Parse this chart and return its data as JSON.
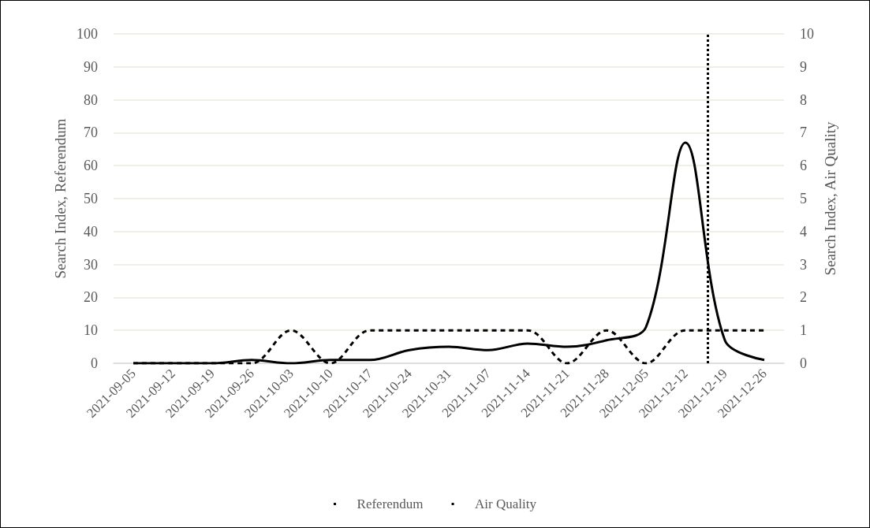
{
  "chart_data": {
    "type": "line",
    "x": [
      "2021-09-05",
      "2021-09-12",
      "2021-09-19",
      "2021-09-26",
      "2021-10-03",
      "2021-10-10",
      "2021-10-17",
      "2021-10-24",
      "2021-10-31",
      "2021-11-07",
      "2021-11-14",
      "2021-11-21",
      "2021-11-28",
      "2021-12-05",
      "2021-12-12",
      "2021-12-19",
      "2021-12-26"
    ],
    "xlim": [
      "2021-09-01T12:00",
      "2021-12-29T12:00"
    ],
    "xticks": [
      "2021-09-05",
      "2021-09-12",
      "2021-09-19",
      "2021-09-26",
      "2021-10-03",
      "2021-10-10",
      "2021-10-17",
      "2021-10-24",
      "2021-10-31",
      "2021-11-07",
      "2021-11-14",
      "2021-11-21",
      "2021-11-28",
      "2021-12-05",
      "2021-12-12",
      "2021-12-19",
      "2021-12-26"
    ],
    "ylabel": "Search Index, Referendum",
    "y2label": "Search Index, Air Quality",
    "ylim": [
      0,
      100
    ],
    "yticks": [
      0,
      10,
      20,
      30,
      40,
      50,
      60,
      70,
      80,
      90,
      100
    ],
    "y2lim": [
      0,
      10
    ],
    "y2ticks": [
      0,
      1,
      2,
      3,
      4,
      5,
      6,
      7,
      8,
      9,
      10
    ],
    "series": [
      {
        "name": "Referendum",
        "color": "#000000",
        "line_style": "solid",
        "values": [
          0,
          0,
          0,
          1,
          0,
          1,
          1,
          4,
          5,
          4,
          6,
          5,
          7,
          11,
          67,
          7,
          1
        ]
      },
      {
        "name": "Air Quality",
        "color": "#000000",
        "line_style": "dashed",
        "axis": "y2",
        "values": [
          0,
          0,
          0,
          0,
          1,
          0,
          1,
          1,
          1,
          1,
          1,
          0,
          1,
          0,
          1,
          1,
          1
        ]
      }
    ],
    "ref_lines": [
      {
        "axis": "x",
        "value": "2021-12-16",
        "color": "#000000",
        "line_style": "dotted"
      }
    ],
    "grid": "y",
    "legend": "bottom",
    "marker": "none"
  }
}
